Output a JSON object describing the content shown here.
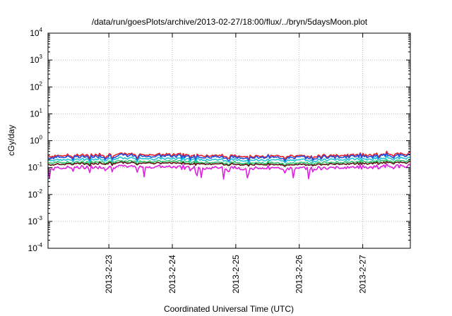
{
  "chart_data": {
    "type": "line",
    "title": "/data/run/goesPlots/archive/2013-02-27/18:00/flux/../bryn/5daysMoon.plot",
    "xlabel": "Coordinated Universal Time (UTC)",
    "ylabel": "cGy/day",
    "yscale": "log",
    "ylim": [
      0.0001,
      10000
    ],
    "y_ticks": [
      {
        "base": "10",
        "exp": "-4",
        "value": 0.0001
      },
      {
        "base": "10",
        "exp": "-3",
        "value": 0.001
      },
      {
        "base": "10",
        "exp": "-2",
        "value": 0.01
      },
      {
        "base": "10",
        "exp": "-1",
        "value": 0.1
      },
      {
        "base": "10",
        "exp": "0",
        "value": 1
      },
      {
        "base": "10",
        "exp": "1",
        "value": 10
      },
      {
        "base": "10",
        "exp": "2",
        "value": 100
      },
      {
        "base": "10",
        "exp": "3",
        "value": 1000
      },
      {
        "base": "10",
        "exp": "4",
        "value": 10000
      }
    ],
    "xlim": [
      "2013-02-22T01:00",
      "2013-02-27T18:00"
    ],
    "x_ticks": [
      {
        "label": "2013-2-23",
        "value": "2013-02-23T00:00"
      },
      {
        "label": "2013-2-24",
        "value": "2013-02-24T00:00"
      },
      {
        "label": "2013-2-25",
        "value": "2013-02-25T00:00"
      },
      {
        "label": "2013-2-26",
        "value": "2013-02-26T00:00"
      },
      {
        "label": "2013-2-27",
        "value": "2013-02-27T00:00"
      }
    ],
    "grid": true,
    "legend": "none",
    "series": [
      {
        "color": "#e8202a",
        "base": 0.27,
        "spread": 0.12
      },
      {
        "color": "#1e4fe0",
        "base": 0.24,
        "spread": 0.14
      },
      {
        "color": "#23c4d8",
        "base": 0.19,
        "spread": 0.1
      },
      {
        "color": "#2dc46a",
        "base": 0.15,
        "spread": 0.08
      },
      {
        "color": "#5a1010",
        "base": 0.13,
        "spread": 0.06
      },
      {
        "color": "#e020e0",
        "base": 0.095,
        "spread": 0.15
      }
    ]
  }
}
